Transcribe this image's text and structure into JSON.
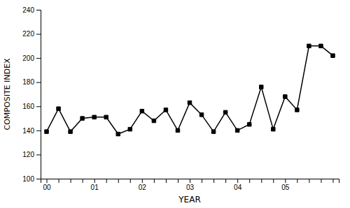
{
  "chart_data": {
    "type": "line",
    "xlabel": "YEAR",
    "ylabel": "COMPOSITE INDEX",
    "categories": [
      "00",
      null,
      null,
      null,
      "01",
      null,
      null,
      null,
      "02",
      null,
      null,
      null,
      "03",
      null,
      null,
      null,
      "04",
      null,
      null,
      null,
      "05",
      null,
      null,
      null,
      null
    ],
    "values": [
      139,
      158,
      139,
      150,
      151,
      151,
      137,
      141,
      156,
      148,
      157,
      140,
      163,
      153,
      139,
      155,
      140,
      145,
      176,
      141,
      168,
      157,
      210,
      210,
      202
    ],
    "color": "#000000",
    "marker": "square",
    "ylim": [
      100,
      240
    ],
    "yticks": [
      100,
      120,
      140,
      160,
      180,
      200,
      220,
      240
    ]
  }
}
